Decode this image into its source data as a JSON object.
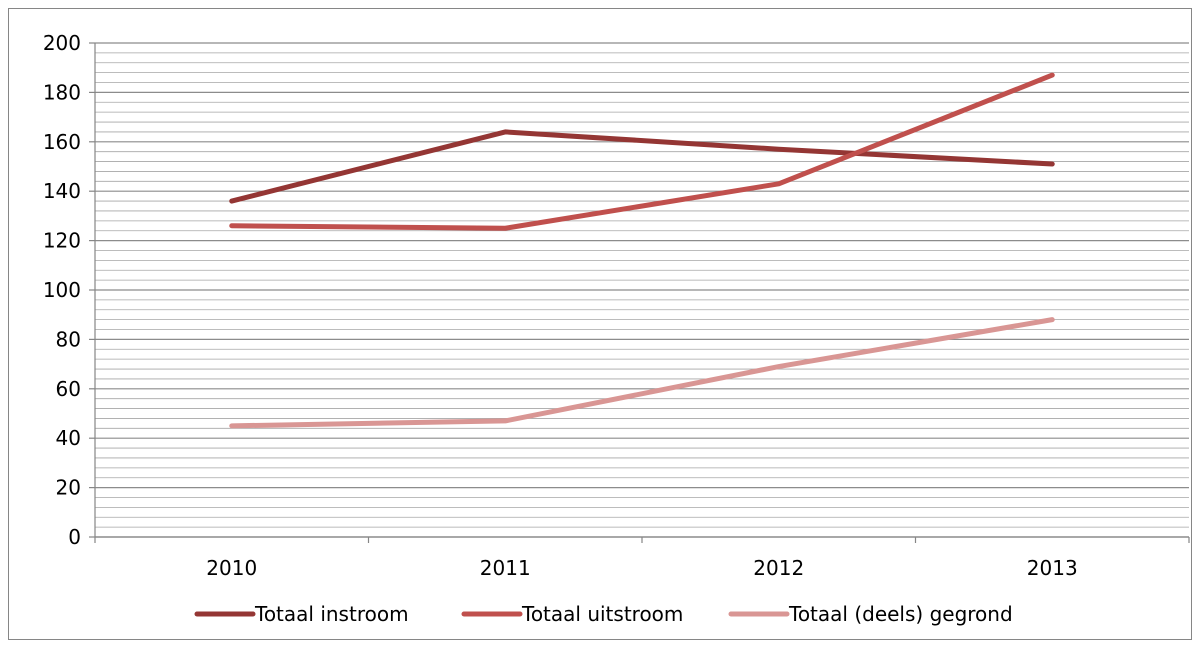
{
  "chart_data": {
    "type": "line",
    "categories": [
      "2010",
      "2011",
      "2012",
      "2013"
    ],
    "series": [
      {
        "name": "Totaal instroom",
        "values": [
          136,
          164,
          157,
          151
        ],
        "color": "#943634"
      },
      {
        "name": "Totaal uitstroom",
        "values": [
          126,
          125,
          143,
          187
        ],
        "color": "#c0504d"
      },
      {
        "name": "Totaal (deels) gegrond",
        "values": [
          45,
          47,
          69,
          88
        ],
        "color": "#d99694"
      }
    ],
    "title": "",
    "xlabel": "",
    "ylabel": "",
    "ylim": [
      0,
      200
    ],
    "y_ticks": [
      0,
      20,
      40,
      60,
      80,
      100,
      120,
      140,
      160,
      180,
      200
    ],
    "grid": "horizontal major and minor gridlines",
    "legend": "bottom"
  }
}
